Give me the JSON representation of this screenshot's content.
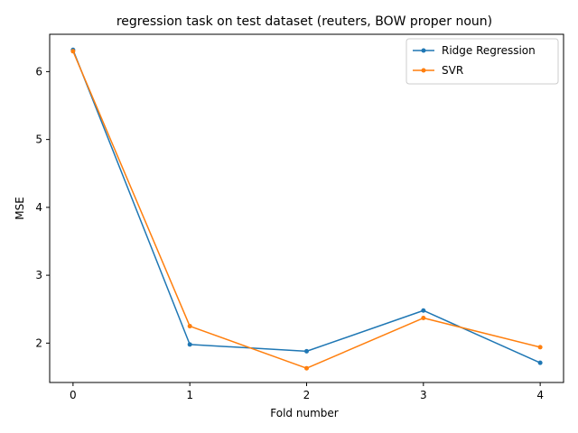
{
  "chart_data": {
    "type": "line",
    "title": "regression task on test dataset (reuters, BOW proper noun)",
    "xlabel": "Fold number",
    "ylabel": "MSE",
    "x": [
      0,
      1,
      2,
      3,
      4
    ],
    "xticks": [
      "0",
      "1",
      "2",
      "3",
      "4"
    ],
    "yticks": [
      "2",
      "3",
      "4",
      "5",
      "6"
    ],
    "xlim": [
      -0.2,
      4.2
    ],
    "ylim": [
      1.42,
      6.55
    ],
    "grid": false,
    "legend_position": "top-right",
    "series": [
      {
        "name": "Ridge Regression",
        "color": "#1f77b4",
        "values": [
          6.32,
          1.98,
          1.88,
          2.48,
          1.71
        ]
      },
      {
        "name": "SVR",
        "color": "#ff7f0e",
        "values": [
          6.3,
          2.25,
          1.63,
          2.37,
          1.94
        ]
      }
    ]
  }
}
